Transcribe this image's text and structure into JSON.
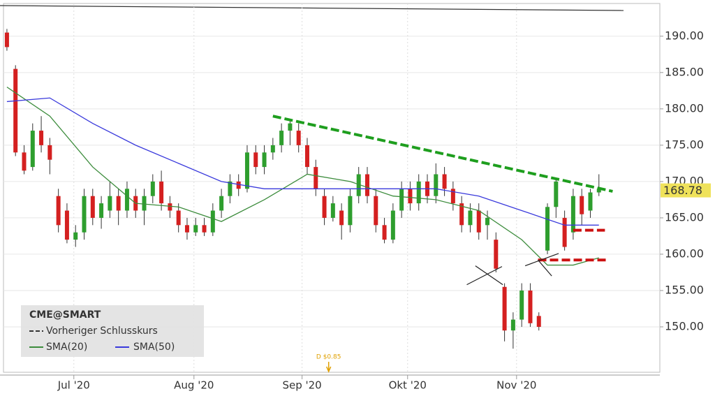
{
  "chart_data": {
    "type": "candlestick",
    "legend_title": "CME@SMART",
    "previous_close_label": "Vorheriger Schlusskurs",
    "up_color": "#2e9e2e",
    "down_color": "#d42020",
    "xlim": [
      -0.4,
      76.1
    ],
    "xticks": [
      {
        "value": 7.8,
        "label": "Jul '20"
      },
      {
        "value": 21.8,
        "label": "Aug '20"
      },
      {
        "value": 34.4,
        "label": "Sep '20"
      },
      {
        "value": 46.7,
        "label": "Okt '20"
      },
      {
        "value": 59.4,
        "label": "Nov '20"
      }
    ],
    "ylim": [
      143.75,
      194.5
    ],
    "yticks": [
      {
        "value": 150,
        "label": "150.00"
      },
      {
        "value": 155,
        "label": "155.00"
      },
      {
        "value": 160,
        "label": "160.00"
      },
      {
        "value": 165,
        "label": "165.00"
      },
      {
        "value": 170,
        "label": "170.00"
      },
      {
        "value": 175,
        "label": "175.00"
      },
      {
        "value": 180,
        "label": "180.00"
      },
      {
        "value": 185,
        "label": "185.00"
      },
      {
        "value": 190,
        "label": "190.00"
      }
    ],
    "grid": true,
    "last_price": 168.78,
    "candles": {
      "x": [
        0,
        1,
        2,
        3,
        4,
        5,
        6,
        7,
        8,
        9,
        10,
        11,
        12,
        13,
        14,
        15,
        16,
        17,
        18,
        19,
        20,
        21,
        22,
        23,
        24,
        25,
        26,
        27,
        28,
        29,
        30,
        31,
        32,
        33,
        34,
        35,
        36,
        37,
        38,
        39,
        40,
        41,
        42,
        43,
        44,
        45,
        46,
        47,
        48,
        49,
        50,
        51,
        52,
        53,
        54,
        55,
        56,
        57,
        58,
        59,
        60,
        61,
        62,
        63,
        64,
        65,
        66,
        67,
        68,
        69
      ],
      "open": [
        190.5,
        185.5,
        174,
        172,
        177,
        175,
        168,
        166,
        162,
        163,
        168,
        165,
        166,
        168,
        166,
        168,
        166,
        168,
        170,
        167,
        166,
        164,
        163,
        164,
        163,
        166,
        168,
        170,
        169,
        174,
        172,
        174,
        175,
        177,
        177,
        175,
        172,
        168,
        165,
        166,
        164,
        168,
        171,
        168,
        164,
        162,
        166,
        169,
        167,
        170,
        168,
        171,
        169,
        167,
        164,
        166,
        164,
        162,
        155.5,
        149.5,
        151,
        155,
        151.5,
        160.5,
        166.5,
        165,
        163,
        168,
        166,
        168.5
      ],
      "high": [
        191,
        186,
        175,
        178,
        179,
        176,
        169,
        167,
        164,
        169,
        169,
        168,
        170,
        169,
        170,
        169,
        169,
        171,
        171.5,
        168,
        167,
        165,
        165,
        165,
        167,
        169,
        171,
        171,
        175,
        175,
        175,
        176,
        178,
        178.5,
        178,
        176,
        173,
        169,
        168,
        167,
        169,
        172,
        172,
        169,
        165,
        167,
        170,
        170,
        171,
        171,
        172.5,
        172,
        170,
        168,
        167,
        167,
        166,
        163,
        156,
        152,
        156,
        156,
        152,
        167,
        170.5,
        166,
        169,
        169,
        169,
        171
      ],
      "low": [
        188,
        173.5,
        171,
        171.5,
        174,
        171,
        163,
        161.5,
        161,
        162,
        164,
        163.5,
        165,
        164,
        165,
        165,
        164,
        167,
        166,
        165,
        163,
        162,
        162.5,
        162.5,
        162.5,
        165,
        167,
        168,
        168.5,
        171,
        171,
        173,
        174,
        175,
        174,
        171,
        168,
        164,
        164.5,
        162,
        163,
        167,
        167,
        163,
        161.5,
        161.5,
        165,
        166,
        166,
        167,
        167,
        168,
        166,
        163,
        163,
        162,
        162,
        157.5,
        148,
        147,
        150,
        150,
        149.5,
        160,
        165,
        160.5,
        162,
        164,
        165,
        168
      ],
      "close": [
        188.5,
        174,
        171.5,
        177,
        175,
        173,
        164,
        162,
        163,
        168,
        165,
        167,
        168,
        166,
        169,
        166,
        168,
        170,
        167,
        166,
        164,
        163,
        164,
        163,
        166,
        168,
        170,
        169,
        174,
        172,
        174,
        175,
        177,
        178,
        175,
        172,
        169,
        165,
        167,
        164,
        168,
        171,
        168,
        164,
        162,
        166,
        169,
        167,
        170,
        168,
        171,
        169,
        167,
        164,
        166,
        163,
        165,
        158,
        149.5,
        151,
        155,
        150.5,
        150,
        166.5,
        170,
        161,
        168,
        165.5,
        168.5,
        169
      ]
    },
    "lines": [
      {
        "name": "SMA(20)",
        "color": "#3c8c3c",
        "x": [
          0,
          5,
          10,
          15,
          20,
          25,
          30,
          35,
          40,
          45,
          50,
          55,
          60,
          63,
          66,
          69
        ],
        "values": [
          183,
          179,
          172,
          167,
          166.5,
          164.5,
          167.5,
          171,
          170,
          168,
          167.5,
          166,
          162,
          158.5,
          158.5,
          159.5
        ]
      },
      {
        "name": "SMA(50)",
        "color": "#3a3adc",
        "x": [
          0,
          5,
          10,
          15,
          20,
          25,
          30,
          35,
          40,
          45,
          50,
          55,
          60,
          65,
          69
        ],
        "values": [
          181,
          181.5,
          178,
          175,
          172.5,
          170,
          169,
          169,
          169,
          169,
          169,
          168,
          166,
          164,
          164
        ]
      }
    ],
    "drawings": [
      {
        "color": "#1e9e1e",
        "dashed": true,
        "x": [
          31,
          70.6
        ],
        "values": [
          179,
          168.65
        ]
      },
      {
        "color": "#cc1111",
        "dashed": true,
        "x": [
          66,
          69.7
        ],
        "values": [
          163.3,
          163.3
        ]
      },
      {
        "color": "#cc1111",
        "dashed": true,
        "x": [
          61.9,
          70
        ],
        "values": [
          159.2,
          159.2
        ]
      },
      {
        "color": "#222222",
        "dashed": false,
        "x": [
          53.6,
          57.7
        ],
        "values": [
          155.8,
          158.3
        ]
      },
      {
        "color": "#222222",
        "dashed": false,
        "x": [
          54.6,
          57.8
        ],
        "values": [
          158.4,
          155.8
        ]
      },
      {
        "color": "#222222",
        "dashed": false,
        "x": [
          60.4,
          64.3
        ],
        "values": [
          158.4,
          160.1
        ]
      },
      {
        "color": "#222222",
        "dashed": false,
        "x": [
          61.9,
          63.5
        ],
        "values": [
          159.2,
          157
        ]
      }
    ],
    "dividend": {
      "label": "D $0.85",
      "x": 37.5
    }
  }
}
